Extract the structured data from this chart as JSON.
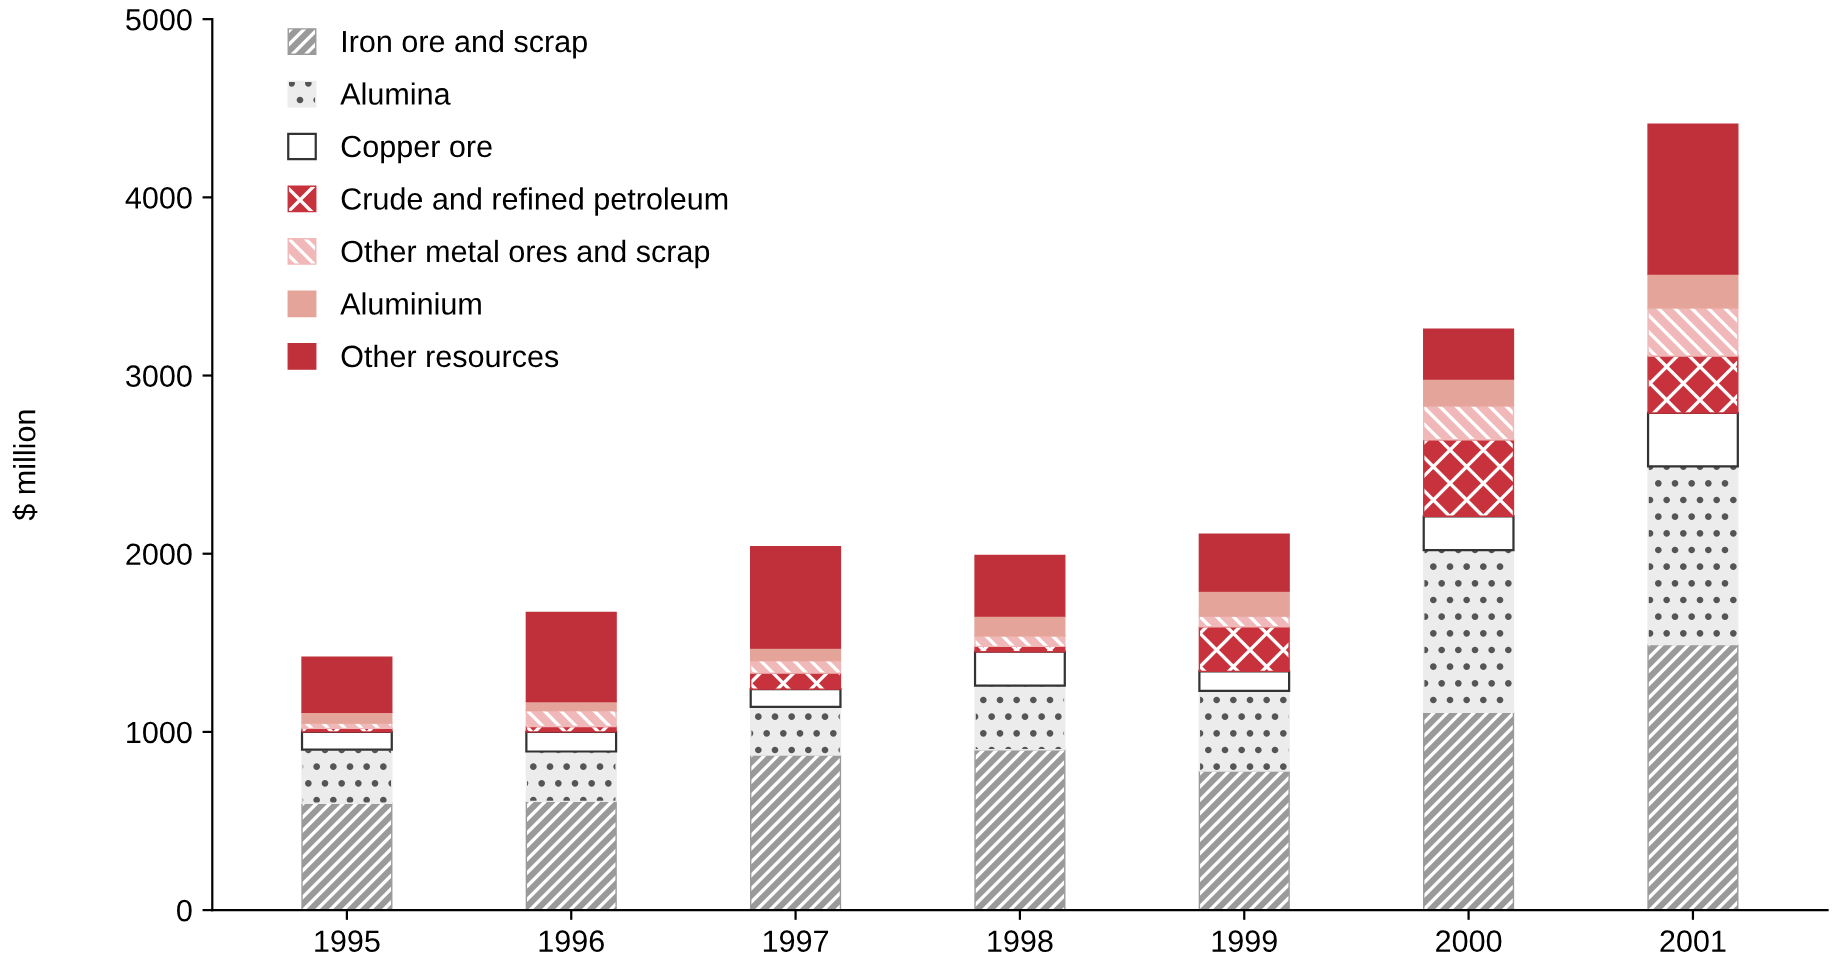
{
  "chart_data": {
    "type": "bar",
    "stacked": true,
    "ylabel": "$ million",
    "categories": [
      "1995",
      "1996",
      "1997",
      "1998",
      "1999",
      "2000",
      "2001"
    ],
    "series": [
      {
        "name": "Iron ore and scrap",
        "color": "#9a9a9a",
        "values": [
          600,
          610,
          870,
          900,
          780,
          1110,
          1490
        ]
      },
      {
        "name": "Alumina",
        "color": "#ececec",
        "values": [
          300,
          280,
          270,
          360,
          450,
          910,
          1000
        ]
      },
      {
        "name": "Copper ore",
        "color": "#ffffff",
        "values": [
          100,
          110,
          100,
          190,
          110,
          190,
          300
        ]
      },
      {
        "name": "Crude and refined petroleum",
        "color": "#c8323c",
        "values": [
          20,
          30,
          90,
          30,
          250,
          430,
          320
        ]
      },
      {
        "name": "Other metal ores and scrap",
        "color": "#f0b8b8",
        "values": [
          30,
          90,
          70,
          60,
          60,
          190,
          270
        ]
      },
      {
        "name": "Aluminium",
        "color": "#e4a49a",
        "values": [
          60,
          50,
          70,
          110,
          140,
          150,
          190
        ]
      },
      {
        "name": "Other resources",
        "color": "#c0303a",
        "values": [
          310,
          500,
          570,
          340,
          320,
          280,
          840
        ]
      }
    ],
    "ylim": [
      0,
      5000
    ],
    "yticks": [
      0,
      1000,
      2000,
      3000,
      4000,
      5000
    ],
    "grid": false,
    "legend": "top left"
  }
}
